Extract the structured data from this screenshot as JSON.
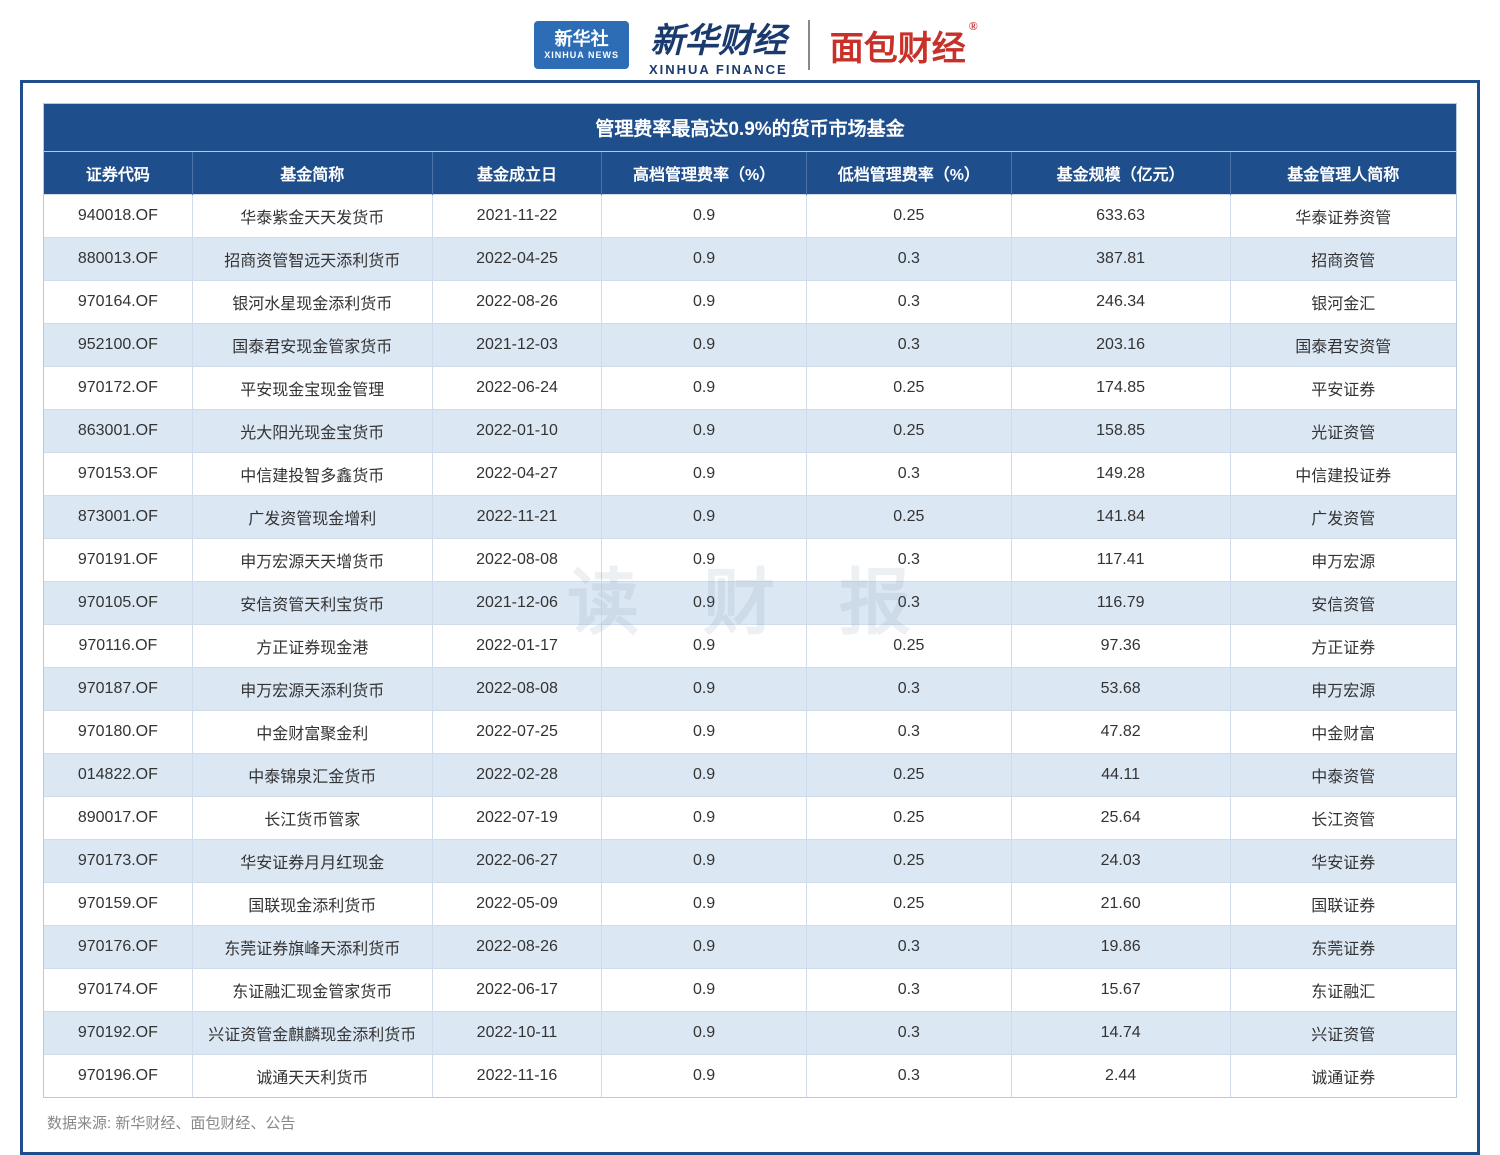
{
  "header": {
    "xinhua_badge_cn": "新华社",
    "xinhua_badge_en": "XINHUA NEWS",
    "xinhua_finance_cn": "新华财经",
    "xinhua_finance_en": "XINHUA FINANCE",
    "mianbao": "面包财经",
    "reg_mark": "®"
  },
  "watermark_text": "读 财 报",
  "table": {
    "title": "管理费率最高达0.9%的货币市场基金",
    "columns": [
      "证券代码",
      "基金简称",
      "基金成立日",
      "高档管理费率（%）",
      "低档管理费率（%）",
      "基金规模（亿元）",
      "基金管理人简称"
    ],
    "rows": [
      [
        "940018.OF",
        "华泰紫金天天发货币",
        "2021-11-22",
        "0.9",
        "0.25",
        "633.63",
        "华泰证券资管"
      ],
      [
        "880013.OF",
        "招商资管智远天添利货币",
        "2022-04-25",
        "0.9",
        "0.3",
        "387.81",
        "招商资管"
      ],
      [
        "970164.OF",
        "银河水星现金添利货币",
        "2022-08-26",
        "0.9",
        "0.3",
        "246.34",
        "银河金汇"
      ],
      [
        "952100.OF",
        "国泰君安现金管家货币",
        "2021-12-03",
        "0.9",
        "0.3",
        "203.16",
        "国泰君安资管"
      ],
      [
        "970172.OF",
        "平安现金宝现金管理",
        "2022-06-24",
        "0.9",
        "0.25",
        "174.85",
        "平安证券"
      ],
      [
        "863001.OF",
        "光大阳光现金宝货币",
        "2022-01-10",
        "0.9",
        "0.25",
        "158.85",
        "光证资管"
      ],
      [
        "970153.OF",
        "中信建投智多鑫货币",
        "2022-04-27",
        "0.9",
        "0.3",
        "149.28",
        "中信建投证券"
      ],
      [
        "873001.OF",
        "广发资管现金增利",
        "2022-11-21",
        "0.9",
        "0.25",
        "141.84",
        "广发资管"
      ],
      [
        "970191.OF",
        "申万宏源天天增货币",
        "2022-08-08",
        "0.9",
        "0.3",
        "117.41",
        "申万宏源"
      ],
      [
        "970105.OF",
        "安信资管天利宝货币",
        "2021-12-06",
        "0.9",
        "0.3",
        "116.79",
        "安信资管"
      ],
      [
        "970116.OF",
        "方正证券现金港",
        "2022-01-17",
        "0.9",
        "0.25",
        "97.36",
        "方正证券"
      ],
      [
        "970187.OF",
        "申万宏源天添利货币",
        "2022-08-08",
        "0.9",
        "0.3",
        "53.68",
        "申万宏源"
      ],
      [
        "970180.OF",
        "中金财富聚金利",
        "2022-07-25",
        "0.9",
        "0.3",
        "47.82",
        "中金财富"
      ],
      [
        "014822.OF",
        "中泰锦泉汇金货币",
        "2022-02-28",
        "0.9",
        "0.25",
        "44.11",
        "中泰资管"
      ],
      [
        "890017.OF",
        "长江货币管家",
        "2022-07-19",
        "0.9",
        "0.25",
        "25.64",
        "长江资管"
      ],
      [
        "970173.OF",
        "华安证券月月红现金",
        "2022-06-27",
        "0.9",
        "0.25",
        "24.03",
        "华安证券"
      ],
      [
        "970159.OF",
        "国联现金添利货币",
        "2022-05-09",
        "0.9",
        "0.25",
        "21.60",
        "国联证券"
      ],
      [
        "970176.OF",
        "东莞证券旗峰天添利货币",
        "2022-08-26",
        "0.9",
        "0.3",
        "19.86",
        "东莞证券"
      ],
      [
        "970174.OF",
        "东证融汇现金管家货币",
        "2022-06-17",
        "0.9",
        "0.3",
        "15.67",
        "东证融汇"
      ],
      [
        "970192.OF",
        "兴证资管金麒麟现金添利货币",
        "2022-10-11",
        "0.9",
        "0.3",
        "14.74",
        "兴证资管"
      ],
      [
        "970196.OF",
        "诚通天天利货币",
        "2022-11-16",
        "0.9",
        "0.3",
        "2.44",
        "诚通证券"
      ]
    ]
  },
  "source_text": "数据来源: 新华财经、面包财经、公告",
  "colors": {
    "header_bg": "#1f4e8c",
    "row_even_bg": "#dce7f4",
    "row_odd_bg": "#ffffff",
    "border": "#b8c9de",
    "frame_border": "#1f4e8c",
    "text": "#333333",
    "source_text": "#888888",
    "logo_red": "#c8302a",
    "logo_blue": "#1a3a6e"
  }
}
